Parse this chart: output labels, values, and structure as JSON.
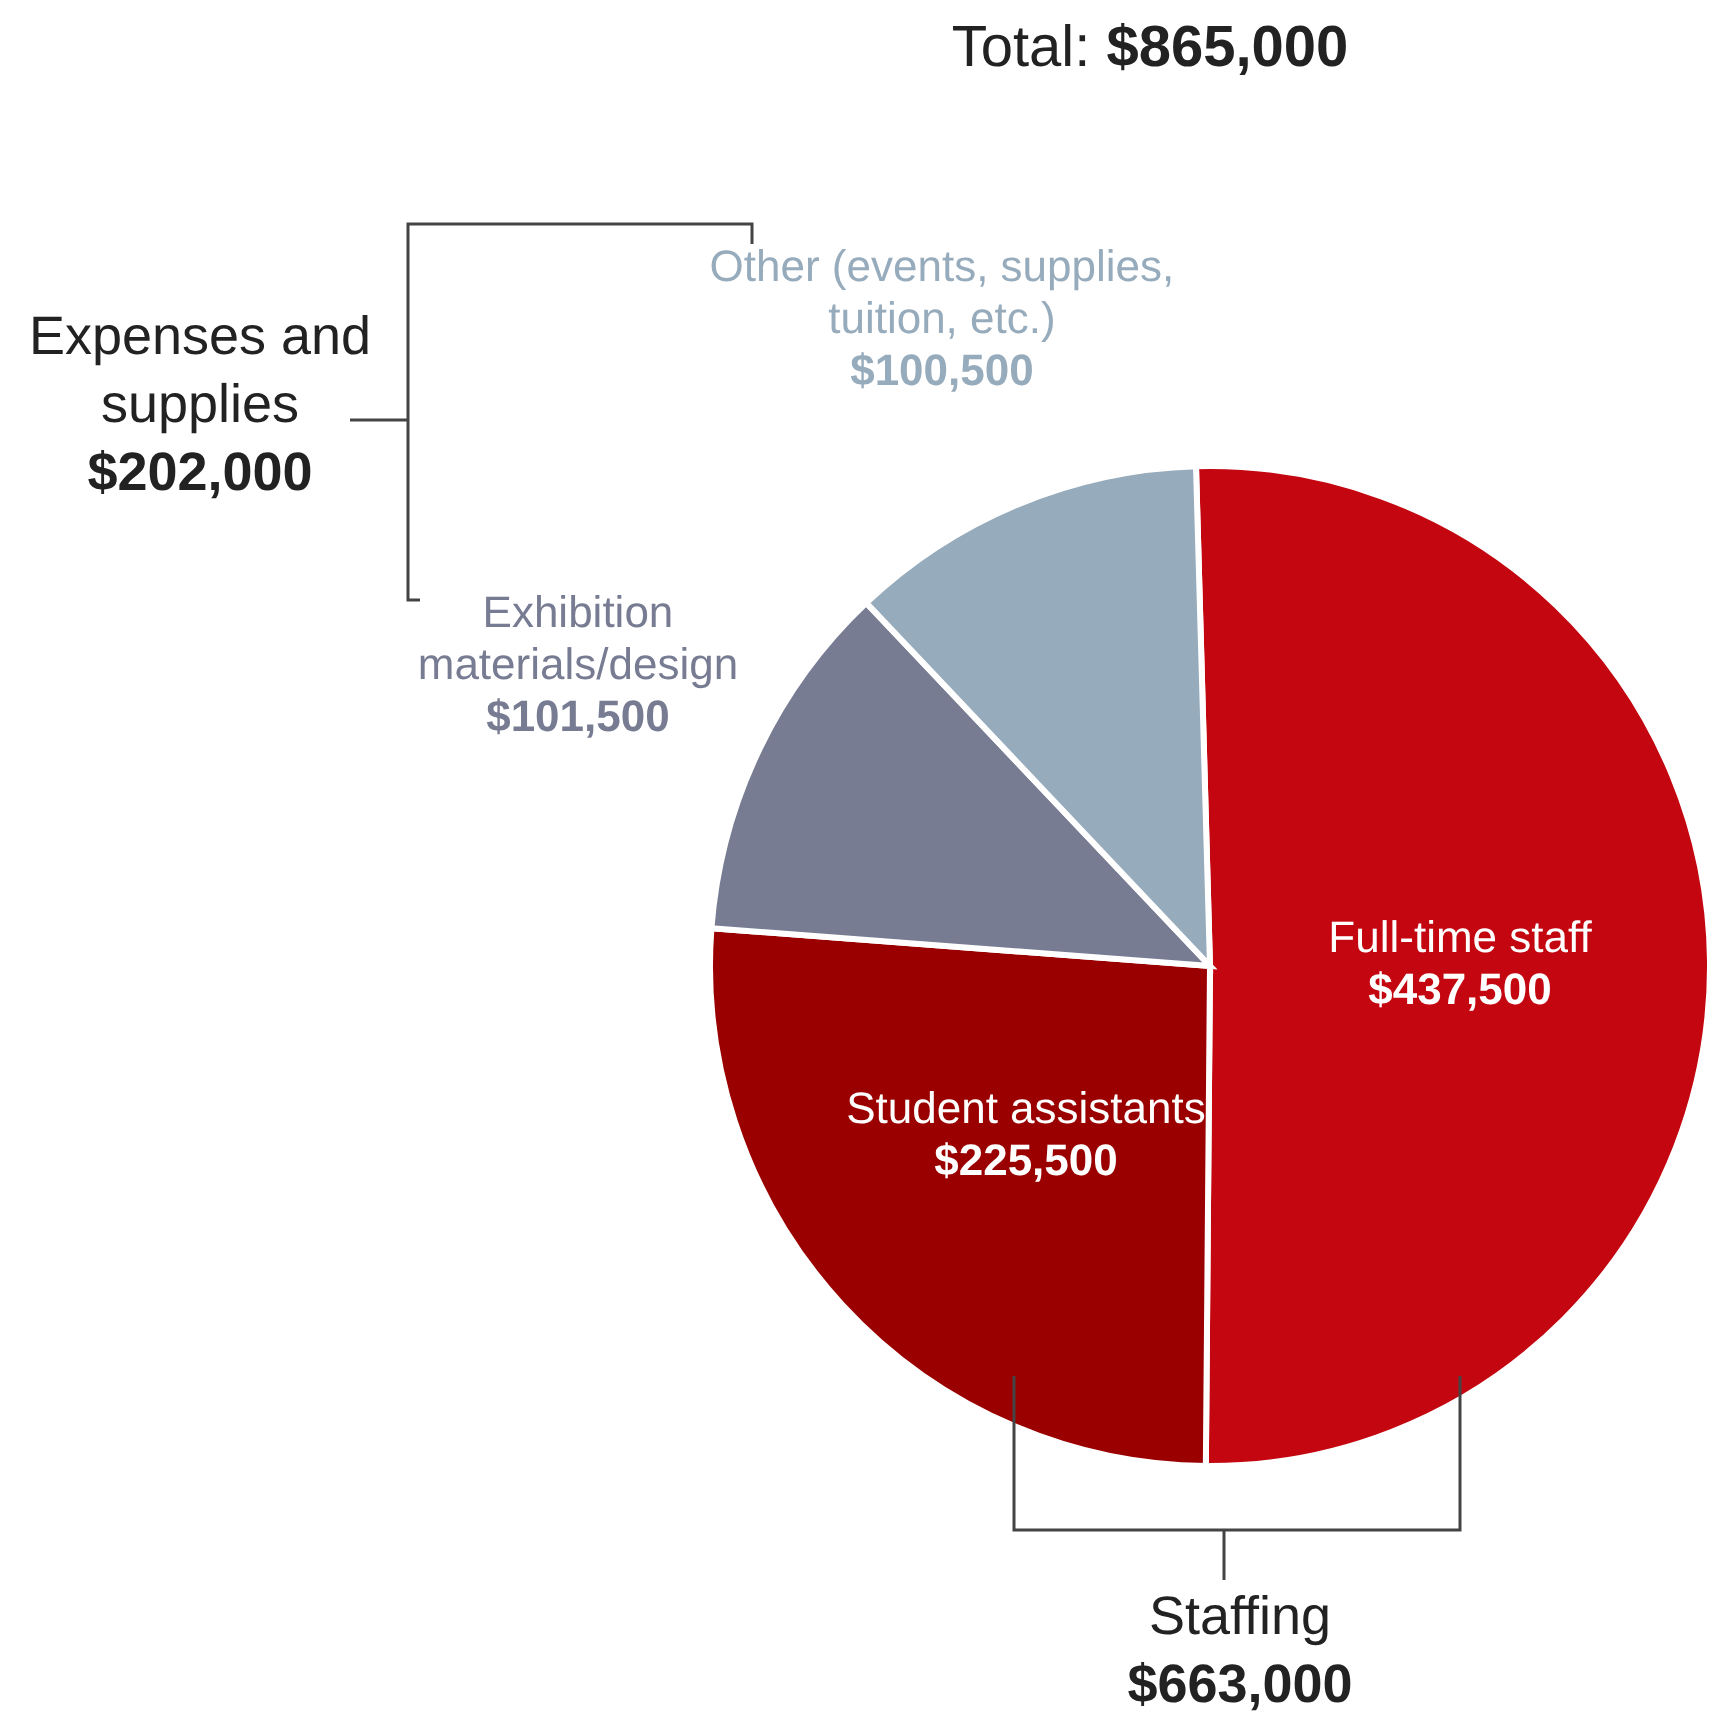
{
  "chart_data": {
    "type": "pie",
    "title": "Total: $865,000",
    "categories": [
      "Full-time staff",
      "Student assistants",
      "Exhibition materials/design",
      "Other (events, supplies, tuition, etc.)"
    ],
    "values": [
      437500,
      225500,
      101500,
      100500
    ],
    "value_labels": [
      "$437,500",
      "$225,500",
      "$101,500",
      "$100,500"
    ],
    "colors": [
      "#c3060f",
      "#9b0000",
      "#777c92",
      "#96abbc"
    ],
    "annotations": [
      "Expenses and supplies $202,000",
      "Staffing $663,000"
    ]
  }
}
